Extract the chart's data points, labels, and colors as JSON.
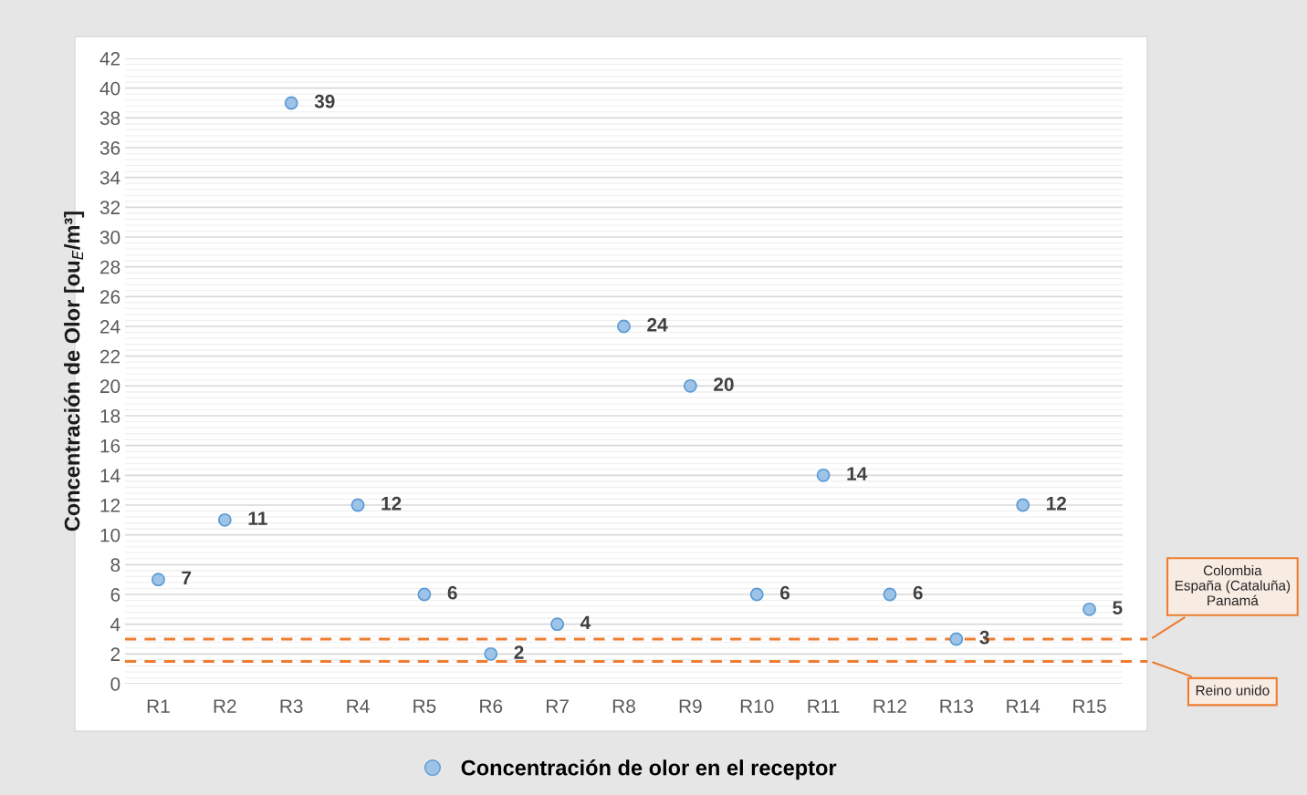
{
  "chart_data": {
    "type": "scatter",
    "ylabel": "Concentración de Olor [ou$_{E}$/m³]",
    "categories": [
      "R1",
      "R2",
      "R3",
      "R4",
      "R5",
      "R6",
      "R7",
      "R8",
      "R9",
      "R10",
      "R11",
      "R12",
      "R13",
      "R14",
      "R15"
    ],
    "series": [
      {
        "name": "Concentración de olor en el receptor",
        "color": "#9dc3e6",
        "values": [
          7,
          11,
          39,
          12,
          6,
          2,
          4,
          24,
          20,
          6,
          14,
          6,
          3,
          12,
          5
        ]
      }
    ],
    "ylim": [
      0,
      42
    ],
    "yticks": [
      0,
      2,
      4,
      6,
      8,
      10,
      12,
      14,
      16,
      18,
      20,
      22,
      24,
      26,
      28,
      30,
      32,
      34,
      36,
      38,
      40,
      42
    ],
    "ref_lines": [
      {
        "axis": "y",
        "value": 3,
        "label": "Colombia\nEspaña (Cataluña)\nPanamá",
        "color": "#ed7d31",
        "line_style": "dashed"
      },
      {
        "axis": "y",
        "value": 1.5,
        "label": "Reino unido",
        "color": "#ed7d31",
        "line_style": "dashed"
      }
    ],
    "data_labels": true,
    "grid": "y",
    "legend": "bottom",
    "marker": "circle"
  }
}
